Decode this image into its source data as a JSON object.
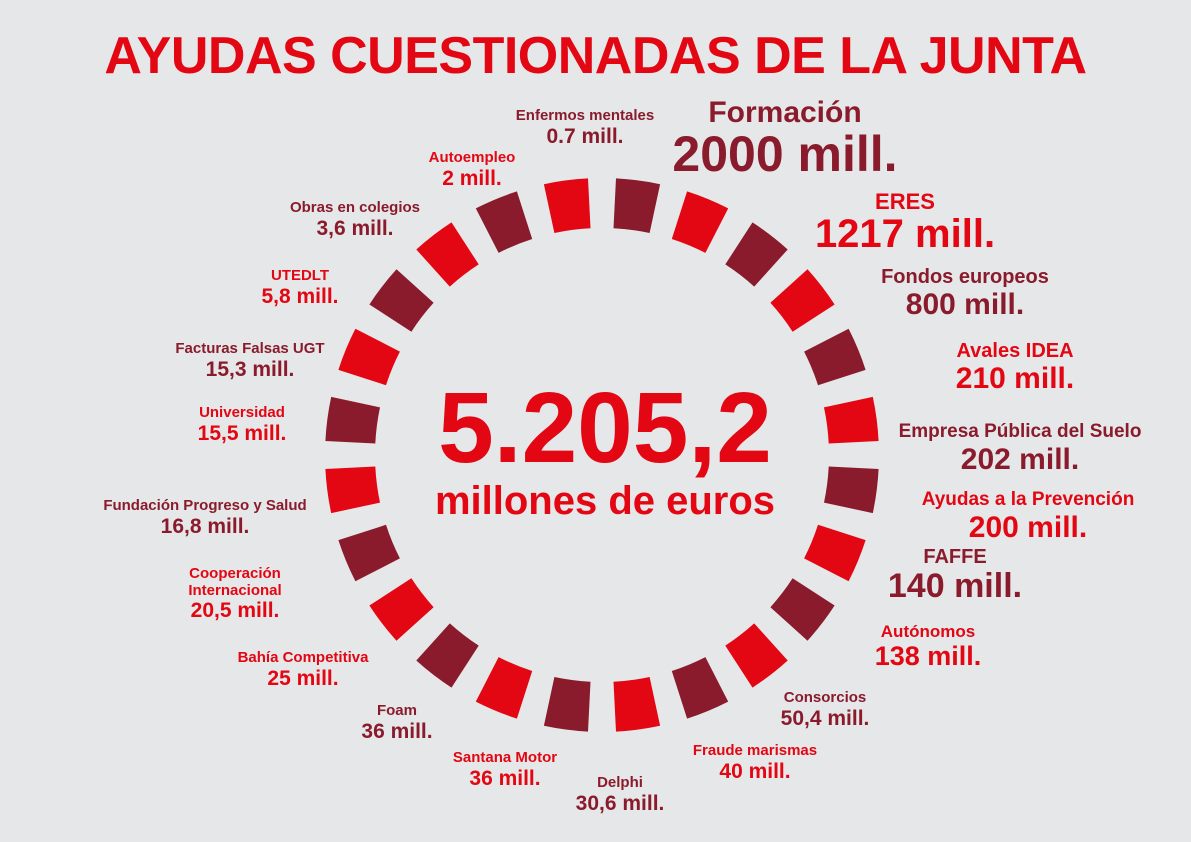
{
  "title": "AYUDAS CUESTIONADAS DE LA JUNTA",
  "center": {
    "total": "5.205,2",
    "unit": "millones de euros"
  },
  "colors": {
    "red": "#e30613",
    "dark": "#8a1b2c",
    "background": "#e6e7e8"
  },
  "items": [
    {
      "name": "Enfermos mentales",
      "value": "0.7 mill."
    },
    {
      "name": "Formación",
      "value": "2000 mill."
    },
    {
      "name": "ERES",
      "value": "1217 mill."
    },
    {
      "name": "Fondos europeos",
      "value": "800 mill."
    },
    {
      "name": "Avales IDEA",
      "value": "210 mill."
    },
    {
      "name": "Empresa Pública del Suelo",
      "value": "202 mill."
    },
    {
      "name": "Ayudas a la Prevención",
      "value": "200 mill."
    },
    {
      "name": "FAFFE",
      "value": "140 mill."
    },
    {
      "name": "Autónomos",
      "value": "138 mill."
    },
    {
      "name": "Consorcios",
      "value": "50,4 mill."
    },
    {
      "name": "Fraude marismas",
      "value": "40 mill."
    },
    {
      "name": "Delphi",
      "value": "30,6 mill."
    },
    {
      "name": "Santana Motor",
      "value": "36 mill."
    },
    {
      "name": "Foam",
      "value": "36 mill."
    },
    {
      "name": "Bahía Competitiva",
      "value": "25 mill."
    },
    {
      "name": "Cooperación Internacional",
      "value": "20,5 mill."
    },
    {
      "name": "Fundación Progreso y Salud",
      "value": "16,8 mill."
    },
    {
      "name": "Universidad",
      "value": "15,5 mill."
    },
    {
      "name": "Facturas Falsas UGT",
      "value": "15,3 mill."
    },
    {
      "name": "UTEDLT",
      "value": "5,8 mill."
    },
    {
      "name": "Obras en colegios",
      "value": "3,6 mill."
    },
    {
      "name": "Autoempleo",
      "value": "2 mill."
    }
  ]
}
